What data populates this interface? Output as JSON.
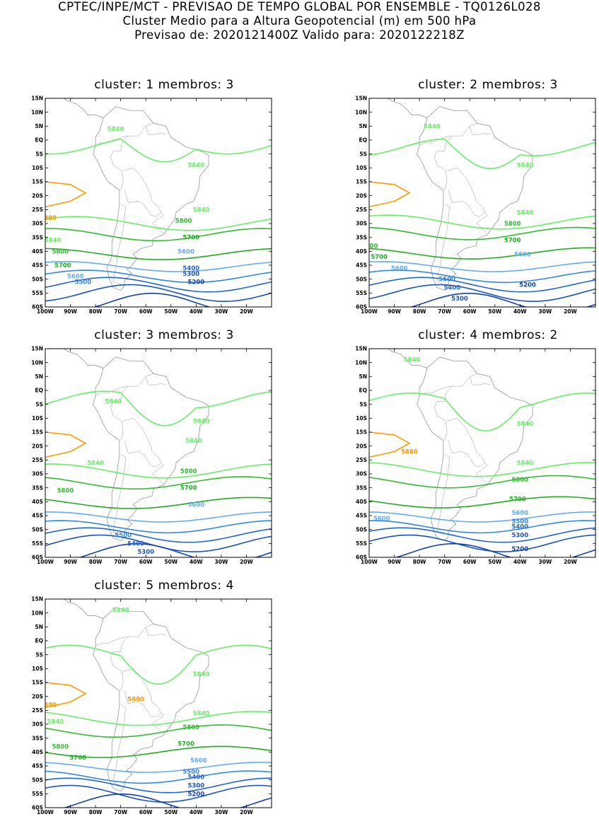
{
  "header": {
    "line1": "CPTEC/INPE/MCT - PREVISAO DE TEMPO GLOBAL POR ENSEMBLE - TQ0126L028",
    "line2": "Cluster Medio para a Altura Geopotencial (m) em 500 hPa",
    "line3": "Previsao de: 2020121400Z   Valido para: 2020122218Z"
  },
  "axes": {
    "lat_ticks": [
      "15N",
      "10N",
      "5N",
      "EQ",
      "5S",
      "10S",
      "15S",
      "20S",
      "25S",
      "30S",
      "35S",
      "40S",
      "45S",
      "50S",
      "55S",
      "60S"
    ],
    "lon_ticks": [
      "100W",
      "90W",
      "80W",
      "70W",
      "60W",
      "50W",
      "40W",
      "30W",
      "20W"
    ]
  },
  "colors": {
    "5880": "#ff9900",
    "5840": "#66ee66",
    "5800": "#33bb33",
    "5700": "#22aa22",
    "5600": "#66aaee",
    "5500": "#3388dd",
    "5400": "#2266cc",
    "5300": "#1a55bb",
    "5200": "#1144aa",
    "5100": "#3322aa"
  },
  "panels": [
    {
      "title": "cluster: 1   membros: 3",
      "labels": [
        {
          "text": "5840",
          "level": "5840",
          "lon": -72,
          "lat": 4
        },
        {
          "text": "5840",
          "level": "5840",
          "lon": -40,
          "lat": -9
        },
        {
          "text": "880",
          "level": "5880",
          "lon": -98,
          "lat": -28
        },
        {
          "text": "5840",
          "level": "5840",
          "lon": -97,
          "lat": -36
        },
        {
          "text": "5840",
          "level": "5840",
          "lon": -38,
          "lat": -25
        },
        {
          "text": "5800",
          "level": "5800",
          "lon": -45,
          "lat": -29
        },
        {
          "text": "5800",
          "level": "5800",
          "lon": -94,
          "lat": -40
        },
        {
          "text": "5700",
          "level": "5700",
          "lon": -42,
          "lat": -35
        },
        {
          "text": "5700",
          "level": "5700",
          "lon": -93,
          "lat": -45
        },
        {
          "text": "5600",
          "level": "5600",
          "lon": -44,
          "lat": -40
        },
        {
          "text": "5600",
          "level": "5600",
          "lon": -88,
          "lat": -49
        },
        {
          "text": "5500",
          "level": "5500",
          "lon": -85,
          "lat": -51
        },
        {
          "text": "5400",
          "level": "5400",
          "lon": -42,
          "lat": -46
        },
        {
          "text": "5300",
          "level": "5300",
          "lon": -42,
          "lat": -48
        },
        {
          "text": "5200",
          "level": "5200",
          "lon": -40,
          "lat": -51
        }
      ]
    },
    {
      "title": "cluster: 2   membros: 3",
      "labels": [
        {
          "text": "5840",
          "level": "5840",
          "lon": -75,
          "lat": 5
        },
        {
          "text": "5840",
          "level": "5840",
          "lon": -38,
          "lat": -9
        },
        {
          "text": "5840",
          "level": "5840",
          "lon": -38,
          "lat": -26
        },
        {
          "text": "5800",
          "level": "5800",
          "lon": -43,
          "lat": -30
        },
        {
          "text": "800",
          "level": "5800",
          "lon": -99,
          "lat": -38
        },
        {
          "text": "5700",
          "level": "5700",
          "lon": -43,
          "lat": -36
        },
        {
          "text": "5700",
          "level": "5700",
          "lon": -96,
          "lat": -42
        },
        {
          "text": "5600",
          "level": "5600",
          "lon": -39,
          "lat": -41
        },
        {
          "text": "5600",
          "level": "5600",
          "lon": -88,
          "lat": -46
        },
        {
          "text": "5500",
          "level": "5500",
          "lon": -69,
          "lat": -50
        },
        {
          "text": "5400",
          "level": "5400",
          "lon": -67,
          "lat": -53
        },
        {
          "text": "5300",
          "level": "5300",
          "lon": -64,
          "lat": -57
        },
        {
          "text": "5200",
          "level": "5200",
          "lon": -37,
          "lat": -52
        }
      ]
    },
    {
      "title": "cluster: 3   membros: 3",
      "labels": [
        {
          "text": "5840",
          "level": "5840",
          "lon": -73,
          "lat": -4
        },
        {
          "text": "5840",
          "level": "5840",
          "lon": -38,
          "lat": -11
        },
        {
          "text": "5840",
          "level": "5840",
          "lon": -41,
          "lat": -18
        },
        {
          "text": "5840",
          "level": "5840",
          "lon": -80,
          "lat": -26
        },
        {
          "text": "5800",
          "level": "5800",
          "lon": -92,
          "lat": -36
        },
        {
          "text": "5800",
          "level": "5800",
          "lon": -43,
          "lat": -29
        },
        {
          "text": "5700",
          "level": "5700",
          "lon": -43,
          "lat": -35
        },
        {
          "text": "5600",
          "level": "5600",
          "lon": -40,
          "lat": -41
        },
        {
          "text": "5500",
          "level": "5500",
          "lon": -69,
          "lat": -52
        },
        {
          "text": "5400",
          "level": "5400",
          "lon": -64,
          "lat": -55
        },
        {
          "text": "5300",
          "level": "5300",
          "lon": -60,
          "lat": -58
        }
      ]
    },
    {
      "title": "cluster: 4   membros: 2",
      "labels": [
        {
          "text": "5840",
          "level": "5840",
          "lon": -83,
          "lat": 11
        },
        {
          "text": "5840",
          "level": "5840",
          "lon": -38,
          "lat": -12
        },
        {
          "text": "5880",
          "level": "5880",
          "lon": -84,
          "lat": -22
        },
        {
          "text": "5840",
          "level": "5840",
          "lon": -38,
          "lat": -26
        },
        {
          "text": "5800",
          "level": "5800",
          "lon": -40,
          "lat": -32
        },
        {
          "text": "5700",
          "level": "5700",
          "lon": -41,
          "lat": -39
        },
        {
          "text": "5600",
          "level": "5600",
          "lon": -40,
          "lat": -44
        },
        {
          "text": "5600",
          "level": "5600",
          "lon": -95,
          "lat": -46
        },
        {
          "text": "5500",
          "level": "5500",
          "lon": -40,
          "lat": -47
        },
        {
          "text": "5400",
          "level": "5400",
          "lon": -40,
          "lat": -49
        },
        {
          "text": "5300",
          "level": "5300",
          "lon": -40,
          "lat": -52
        },
        {
          "text": "5200",
          "level": "5200",
          "lon": -40,
          "lat": -57
        }
      ]
    },
    {
      "title": "cluster: 5   membros: 4",
      "labels": [
        {
          "text": "5840",
          "level": "5840",
          "lon": -70,
          "lat": 11
        },
        {
          "text": "5840",
          "level": "5840",
          "lon": -38,
          "lat": -12
        },
        {
          "text": "5880",
          "level": "5880",
          "lon": -64,
          "lat": -21
        },
        {
          "text": "880",
          "level": "5880",
          "lon": -98,
          "lat": -23
        },
        {
          "text": "5840",
          "level": "5840",
          "lon": -96,
          "lat": -29
        },
        {
          "text": "5840",
          "level": "5840",
          "lon": -38,
          "lat": -26
        },
        {
          "text": "5800",
          "level": "5800",
          "lon": -42,
          "lat": -31
        },
        {
          "text": "5800",
          "level": "5800",
          "lon": -94,
          "lat": -38
        },
        {
          "text": "5700",
          "level": "5700",
          "lon": -44,
          "lat": -37
        },
        {
          "text": "5700",
          "level": "5700",
          "lon": -87,
          "lat": -42
        },
        {
          "text": "5600",
          "level": "5600",
          "lon": -39,
          "lat": -43
        },
        {
          "text": "5500",
          "level": "5500",
          "lon": -42,
          "lat": -47
        },
        {
          "text": "5400",
          "level": "5400",
          "lon": -40,
          "lat": -49
        },
        {
          "text": "5300",
          "level": "5300",
          "lon": -40,
          "lat": -52
        },
        {
          "text": "5200",
          "level": "5200",
          "lon": -40,
          "lat": -55
        }
      ]
    }
  ]
}
